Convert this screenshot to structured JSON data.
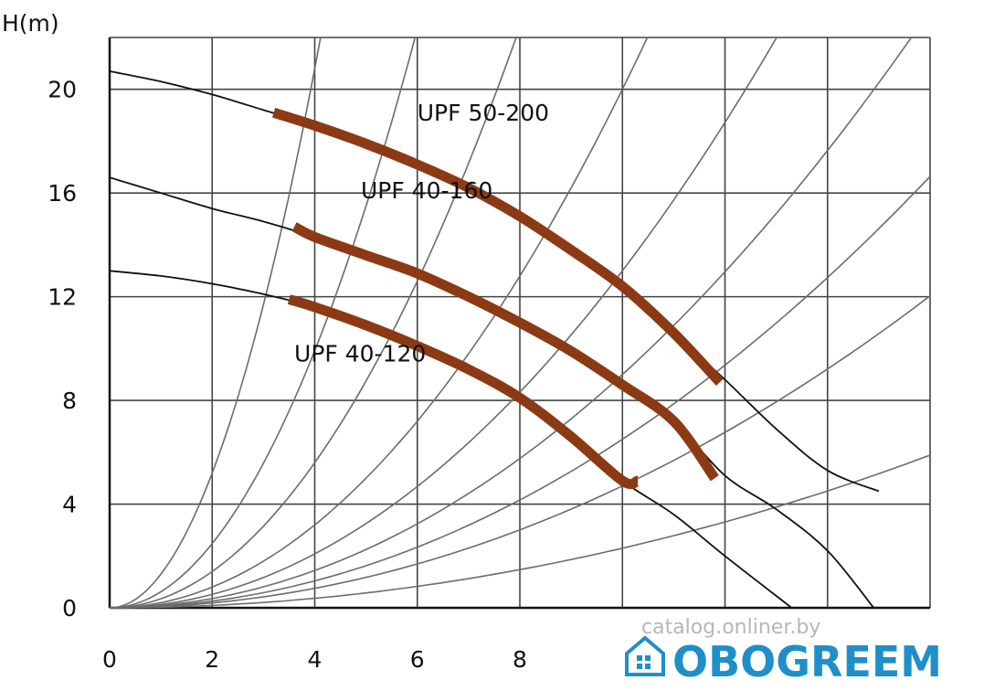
{
  "chart_data": {
    "type": "line",
    "ylabel": "H(m)",
    "xlabel": "",
    "xlim": [
      0,
      16
    ],
    "ylim": [
      0,
      22
    ],
    "xticks": [
      0,
      2,
      4,
      6,
      8
    ],
    "yticks": [
      0,
      4,
      8,
      12,
      16,
      20
    ],
    "grid": true,
    "legend": "none",
    "series": [
      {
        "name": "UPF 50-200",
        "full_curve": [
          [
            0,
            20.7
          ],
          [
            1,
            20.3
          ],
          [
            2,
            19.8
          ],
          [
            3,
            19.2
          ],
          [
            4,
            18.6
          ],
          [
            5,
            17.9
          ],
          [
            6,
            17.1
          ],
          [
            7,
            16.2
          ],
          [
            8,
            15.1
          ],
          [
            9,
            13.8
          ],
          [
            10,
            12.4
          ],
          [
            11,
            10.6
          ],
          [
            12,
            8.8
          ],
          [
            13,
            6.9
          ],
          [
            14,
            5.3
          ],
          [
            15,
            4.5
          ]
        ],
        "operating_range": [
          [
            3.2,
            19.1
          ],
          [
            4,
            18.6
          ],
          [
            5,
            17.9
          ],
          [
            6,
            17.1
          ],
          [
            7,
            16.2
          ],
          [
            8,
            15.1
          ],
          [
            9,
            13.8
          ],
          [
            10,
            12.4
          ],
          [
            11,
            10.6
          ],
          [
            11.9,
            8.7
          ]
        ],
        "label_at": [
          6,
          18.8
        ]
      },
      {
        "name": "UPF 40-160",
        "full_curve": [
          [
            0,
            16.6
          ],
          [
            1,
            16.0
          ],
          [
            2,
            15.4
          ],
          [
            3,
            14.9
          ],
          [
            4,
            14.3
          ],
          [
            5,
            13.6
          ],
          [
            6,
            12.9
          ],
          [
            7,
            12.0
          ],
          [
            8,
            11.0
          ],
          [
            9,
            9.9
          ],
          [
            10,
            8.6
          ],
          [
            11,
            7.2
          ],
          [
            12,
            5.1
          ],
          [
            13,
            3.8
          ],
          [
            14,
            2.2
          ],
          [
            14.9,
            0
          ]
        ],
        "operating_range": [
          [
            3.6,
            14.7
          ],
          [
            4,
            14.3
          ],
          [
            5,
            13.6
          ],
          [
            6,
            12.9
          ],
          [
            7,
            12.0
          ],
          [
            8,
            11.0
          ],
          [
            9,
            9.9
          ],
          [
            10,
            8.6
          ],
          [
            11,
            7.2
          ],
          [
            11.8,
            5.0
          ]
        ],
        "label_at": [
          4.9,
          15.8
        ]
      },
      {
        "name": "UPF 40-120",
        "full_curve": [
          [
            0,
            13.0
          ],
          [
            1,
            12.8
          ],
          [
            2,
            12.5
          ],
          [
            3,
            12.1
          ],
          [
            4,
            11.6
          ],
          [
            5,
            10.9
          ],
          [
            6,
            10.1
          ],
          [
            7,
            9.2
          ],
          [
            8,
            8.1
          ],
          [
            9,
            6.6
          ],
          [
            10,
            4.9
          ],
          [
            11,
            3.6
          ],
          [
            12,
            2.0
          ],
          [
            13.3,
            0
          ]
        ],
        "operating_range": [
          [
            3.5,
            11.9
          ],
          [
            4,
            11.6
          ],
          [
            5,
            10.9
          ],
          [
            6,
            10.1
          ],
          [
            7,
            9.2
          ],
          [
            8,
            8.1
          ],
          [
            9,
            6.6
          ],
          [
            10,
            4.9
          ],
          [
            10.3,
            4.9
          ]
        ],
        "label_at": [
          3.6,
          9.5
        ]
      }
    ],
    "system_curves": [
      {
        "k": 1.3
      },
      {
        "k": 0.62
      },
      {
        "k": 0.35
      },
      {
        "k": 0.2
      },
      {
        "k": 0.13
      },
      {
        "k": 0.09
      },
      {
        "k": 0.065
      },
      {
        "k": 0.047
      },
      {
        "k": 0.023
      }
    ],
    "colors": {
      "operating_line": "#8b3a14",
      "curve_line": "#111111",
      "system_line": "#6c6c6c",
      "grid_line": "#444444"
    }
  },
  "watermark": "catalog.onliner.by",
  "logo": {
    "icon": "house-icon",
    "text": "OBOGREEM",
    "color": "#1e8fc9"
  }
}
